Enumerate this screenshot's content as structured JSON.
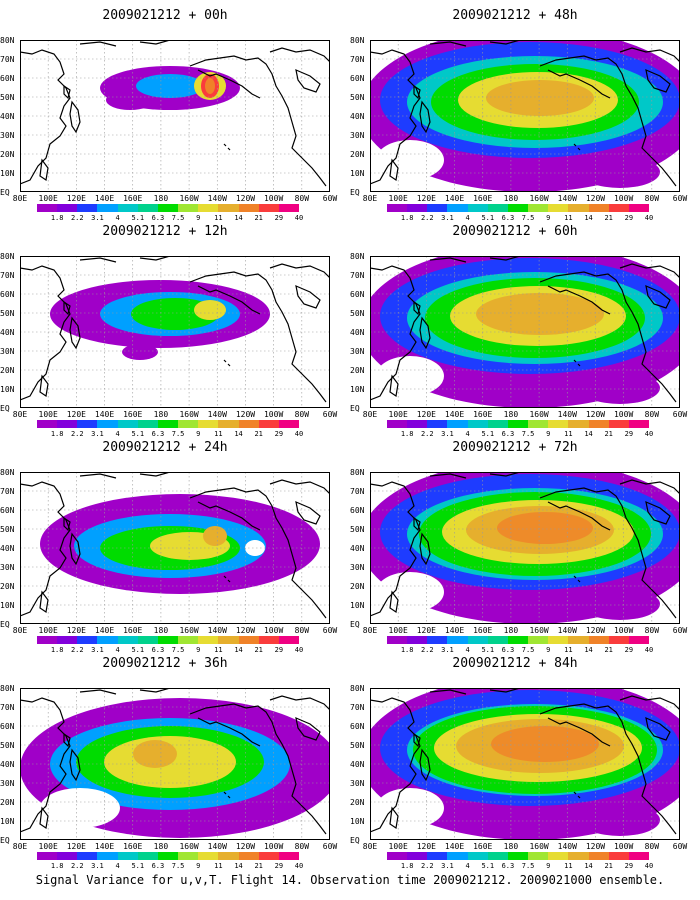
{
  "panels": [
    {
      "title": "2009021212 + 00h",
      "level": 0
    },
    {
      "title": "2009021212 + 48h",
      "level": 4
    },
    {
      "title": "2009021212 + 12h",
      "level": 1
    },
    {
      "title": "2009021212 + 60h",
      "level": 5
    },
    {
      "title": "2009021212 + 24h",
      "level": 2
    },
    {
      "title": "2009021212 + 72h",
      "level": 6
    },
    {
      "title": "2009021212 + 36h",
      "level": 3
    },
    {
      "title": "2009021212 + 84h",
      "level": 7
    }
  ],
  "lat_labels": [
    "80N",
    "70N",
    "60N",
    "50N",
    "40N",
    "30N",
    "20N",
    "10N",
    "EQ"
  ],
  "lon_labels": [
    "80E",
    "100E",
    "120E",
    "140E",
    "160E",
    "180",
    "160W",
    "140W",
    "120W",
    "100W",
    "80W",
    "60W"
  ],
  "colorbar": {
    "labels": [
      "1.8",
      "2.2",
      "3.1",
      "4",
      "5.1",
      "6.3",
      "7.5",
      "9",
      "11",
      "14",
      "21",
      "29",
      "40"
    ],
    "colors": [
      "#a000c8",
      "#8200dc",
      "#1e3cff",
      "#00a0ff",
      "#00c8c8",
      "#00d28c",
      "#00dc00",
      "#a0e632",
      "#e6dc32",
      "#e6af2d",
      "#f08228",
      "#fa3c3c",
      "#f00082"
    ]
  },
  "footer": "Signal Variance for u,v,T. Flight 14. Observation time 2009021212. 2009021000 ensemble."
}
